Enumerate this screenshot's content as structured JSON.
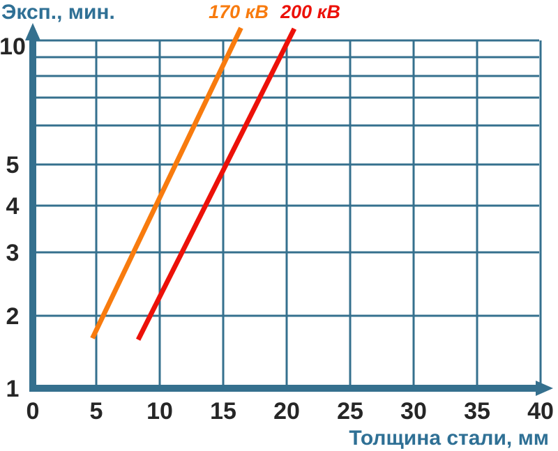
{
  "chart_data": {
    "type": "line",
    "title": "",
    "ylabel": "Эксп., мин.",
    "xlabel": "Толщина стали, мм",
    "x_axis": {
      "ticks": [
        0,
        5,
        10,
        15,
        20,
        25,
        30,
        35,
        40
      ],
      "range": [
        0,
        40
      ],
      "grid": true
    },
    "y_axis": {
      "scale": "log",
      "range": [
        1,
        10
      ],
      "gridline_values": [
        1,
        2,
        3,
        4,
        5,
        6,
        7,
        8,
        9,
        10
      ],
      "labeled_ticks": [
        1,
        2,
        3,
        4,
        5,
        10
      ],
      "grid": true
    },
    "series": [
      {
        "name": "170 кВ",
        "color": "#F87B0E",
        "points": [
          [
            4.7,
            1.69
          ],
          [
            16.4,
            10.75
          ]
        ]
      },
      {
        "name": "200 кВ",
        "color": "#EC1109",
        "points": [
          [
            8.3,
            1.67
          ],
          [
            20.6,
            10.7
          ]
        ]
      }
    ],
    "legend_position": "top",
    "colors": {
      "axis": "#35708E",
      "grid": "#35708E",
      "tick_text": "#262626",
      "label_text": "#2F7095"
    }
  }
}
